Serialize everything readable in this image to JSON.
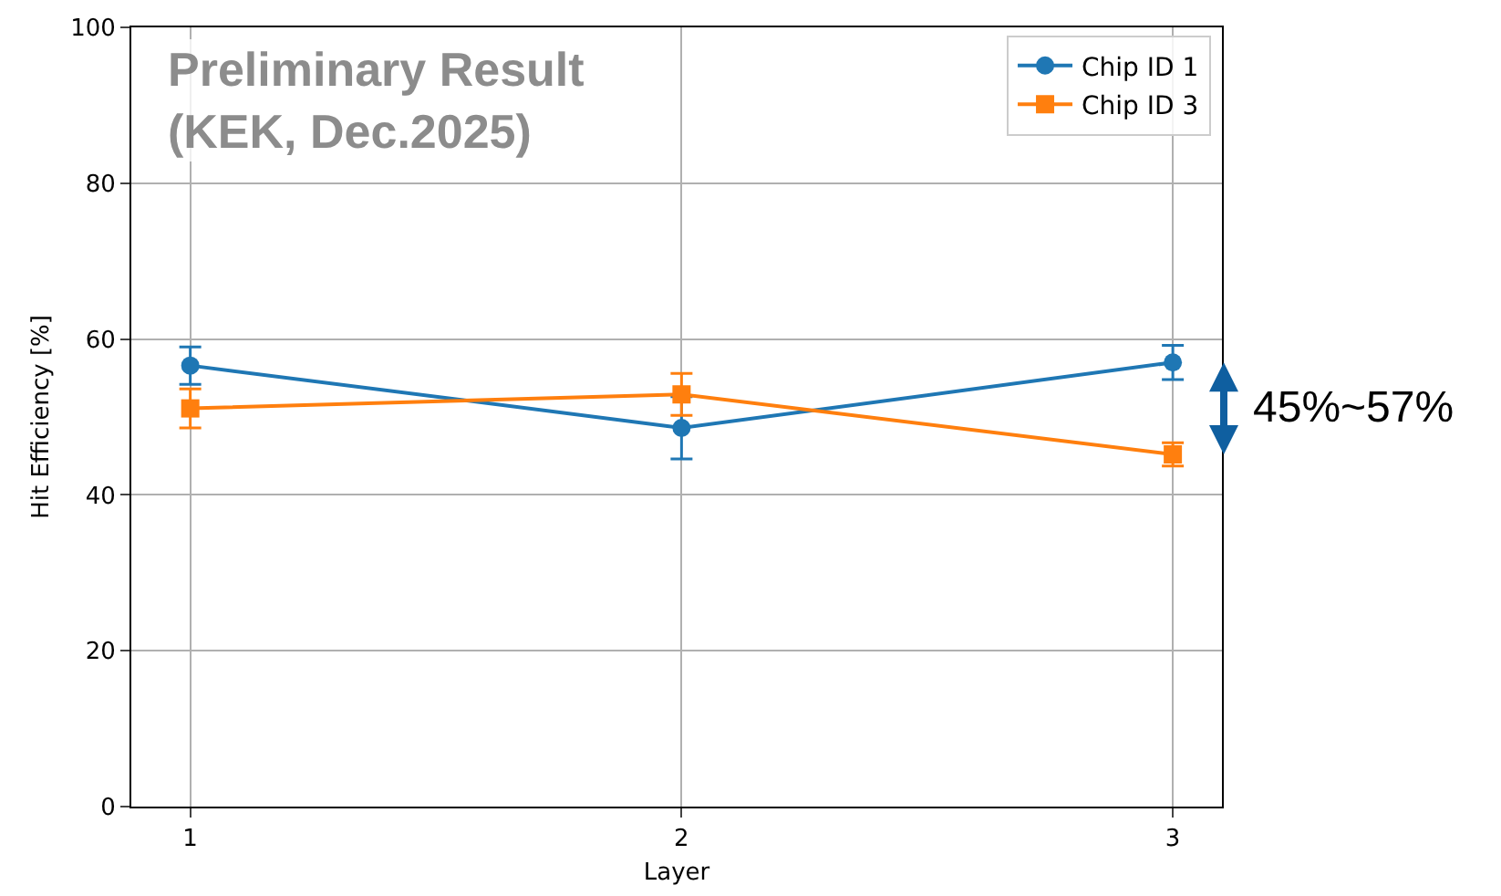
{
  "chart_data": {
    "type": "line",
    "xlabel": "Layer",
    "ylabel": "Hit Efficiency [%]",
    "x": [
      1,
      2,
      3
    ],
    "xlim": [
      0.88,
      3.1
    ],
    "xticks": [
      1,
      2,
      3
    ],
    "ylim": [
      0,
      100
    ],
    "yticks": [
      0,
      20,
      40,
      60,
      80,
      100
    ],
    "grid": true,
    "legend": "top right",
    "series": [
      {
        "name": "Chip ID 1",
        "color": "#1f77b4",
        "marker": "circle",
        "values": [
          56.6,
          48.6,
          57.0
        ],
        "errors": [
          2.4,
          4.0,
          2.2
        ]
      },
      {
        "name": "Chip ID 3",
        "color": "#ff7f0e",
        "marker": "square",
        "values": [
          51.1,
          52.9,
          45.2
        ],
        "errors": [
          2.5,
          2.7,
          1.5
        ]
      }
    ],
    "annotations": [
      "Preliminary Result\n(KEK, Dec.2025)",
      "45%~57%"
    ]
  }
}
